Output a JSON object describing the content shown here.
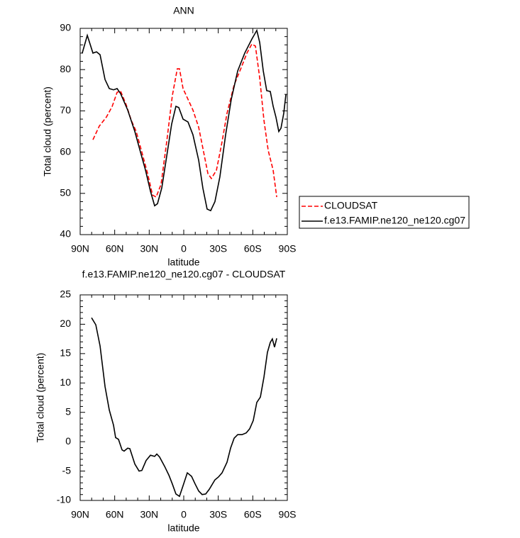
{
  "chart_data": [
    {
      "type": "line",
      "title": "ANN",
      "xlabel": "latitude",
      "ylabel": "Total cloud (percent)",
      "xlim": [
        90,
        -90
      ],
      "xticks": [
        {
          "value": 90,
          "label": "90N"
        },
        {
          "value": 60,
          "label": "60N"
        },
        {
          "value": 30,
          "label": "30N"
        },
        0,
        {
          "value": -30,
          "label": "30S"
        },
        {
          "value": -60,
          "label": "60S"
        },
        {
          "value": -90,
          "label": "90S"
        }
      ],
      "ylim": [
        40,
        90
      ],
      "yticks": [
        40,
        50,
        60,
        70,
        80,
        90
      ],
      "legend": "right",
      "series": [
        {
          "name": "CLOUDSAT",
          "color": "#ff0000",
          "dash": "dashed",
          "x": [
            78.9,
            73.4,
            67.2,
            62.3,
            57.9,
            54.9,
            49.9,
            45.6,
            41.3,
            36.4,
            31.4,
            27.1,
            24.0,
            19.7,
            14.8,
            9.9,
            5.6,
            3.7,
            0.6,
            -3.7,
            -8.0,
            -13.0,
            -17.3,
            -21.0,
            -24.0,
            -28.4,
            -32.7,
            -37.6,
            -43.8,
            -50.0,
            -54.9,
            -59.2,
            -62.3,
            -66.0,
            -69.7,
            -73.4,
            -77.7,
            -80.8
          ],
          "values": [
            63,
            66.3,
            68.5,
            71,
            74.5,
            74.8,
            71.4,
            67.7,
            65,
            60,
            54.8,
            49.6,
            49.1,
            52.2,
            62.5,
            73.7,
            80.2,
            80.2,
            75.4,
            72.8,
            70.2,
            66,
            60,
            54.8,
            53.6,
            55.6,
            61.6,
            69.4,
            76.3,
            80.5,
            84,
            86.2,
            85.7,
            78,
            67.7,
            60.4,
            55.6,
            49.1
          ]
        },
        {
          "name": "f.e13.FAMIP.ne120_ne120.cg07",
          "color": "#000000",
          "dash": "solid",
          "x": [
            88.2,
            83.8,
            78.9,
            75.8,
            72.7,
            68.4,
            64.7,
            61.0,
            57.9,
            54.9,
            48.7,
            42.5,
            37.6,
            33.2,
            28.9,
            25.3,
            22.8,
            19.1,
            14.8,
            10.5,
            6.8,
            4.3,
            0.6,
            -3.7,
            -8.0,
            -13.0,
            -16.6,
            -20.3,
            -23.4,
            -27.1,
            -31.4,
            -36.4,
            -41.3,
            -46.9,
            -53.0,
            -59.2,
            -63.5,
            -66.0,
            -69.1,
            -72.1,
            -75.2,
            -77.7,
            -80.1,
            -82.6,
            -84.5,
            -86.9,
            -88.8
          ],
          "values": [
            84,
            88.3,
            84,
            84.3,
            83.6,
            77.6,
            75.4,
            75.1,
            75.4,
            74.2,
            70.2,
            65,
            60,
            55.6,
            50.5,
            47,
            47.5,
            51.3,
            59,
            66.8,
            71.1,
            70.8,
            68,
            67.3,
            64.2,
            58,
            51.3,
            46.2,
            45.8,
            48,
            54,
            64.2,
            72.8,
            79.7,
            84,
            87.4,
            89.5,
            86.6,
            79.7,
            74.9,
            74.7,
            71.1,
            68.5,
            65,
            65.8,
            69.4,
            74
          ]
        }
      ]
    },
    {
      "type": "line",
      "title": "f.e13.FAMIP.ne120_ne120.cg07 - CLOUDSAT",
      "xlabel": "latitude",
      "ylabel": "Total cloud (percent)",
      "xlim": [
        90,
        -90
      ],
      "xticks": [
        {
          "value": 90,
          "label": "90N"
        },
        {
          "value": 60,
          "label": "60N"
        },
        {
          "value": 30,
          "label": "30N"
        },
        0,
        {
          "value": -30,
          "label": "30S"
        },
        {
          "value": -60,
          "label": "60S"
        },
        {
          "value": -90,
          "label": "90S"
        }
      ],
      "ylim": [
        -10,
        25
      ],
      "yticks": [
        -10,
        -5,
        0,
        5,
        10,
        15,
        20,
        25
      ],
      "series": [
        {
          "color": "#000000",
          "dash": "solid",
          "x": [
            80.1,
            76.4,
            72.7,
            68.4,
            64.7,
            61.0,
            59.2,
            56.7,
            53.6,
            51.8,
            48.7,
            46.8,
            42.5,
            38.8,
            36.4,
            32.7,
            28.9,
            25.3,
            23.4,
            21.0,
            16.6,
            12.9,
            9.9,
            6.8,
            3.7,
            0.6,
            -3.1,
            -6.8,
            -9.9,
            -13.0,
            -16.0,
            -19.1,
            -22.2,
            -27.1,
            -30.2,
            -33.3,
            -37.6,
            -40.7,
            -43.8,
            -46.9,
            -50.6,
            -54.3,
            -57.3,
            -60.4,
            -63.5,
            -66.6,
            -69.7,
            -72.7,
            -75.2,
            -77.0,
            -78.9,
            -80.8
          ],
          "values": [
            21.1,
            19.9,
            16.3,
            9.4,
            5.4,
            2.8,
            0.7,
            0.4,
            -1.4,
            -1.6,
            -1.1,
            -1.2,
            -3.8,
            -5.0,
            -4.9,
            -3.2,
            -2.3,
            -2.5,
            -2.1,
            -2.6,
            -4.2,
            -5.7,
            -7.2,
            -8.9,
            -9.3,
            -7.5,
            -5.3,
            -5.9,
            -7.2,
            -8.4,
            -9.0,
            -8.9,
            -8.1,
            -6.5,
            -6.0,
            -5.3,
            -3.5,
            -1.1,
            0.6,
            1.2,
            1.2,
            1.5,
            2.2,
            3.6,
            6.7,
            7.6,
            11.0,
            15.2,
            16.9,
            17.5,
            16.1,
            17.6
          ]
        }
      ]
    }
  ]
}
